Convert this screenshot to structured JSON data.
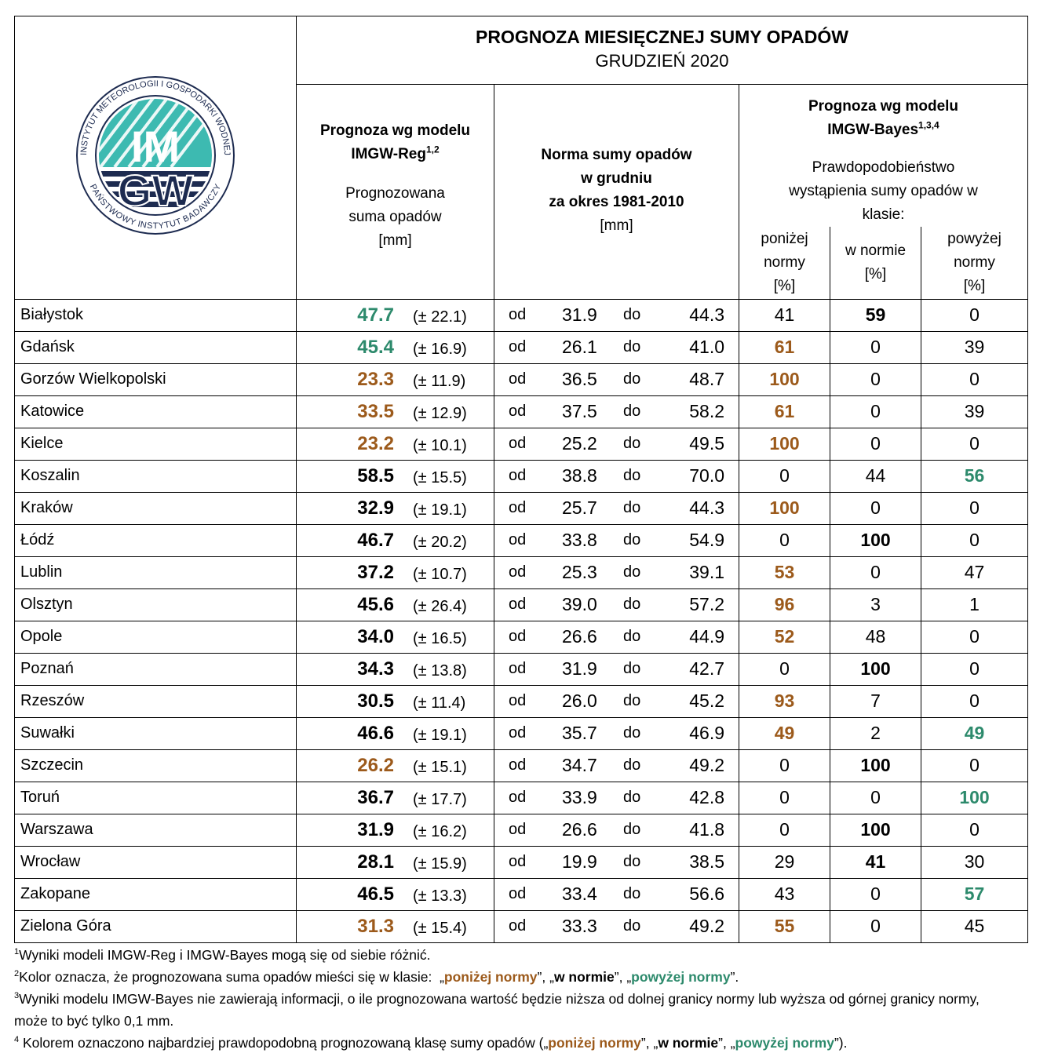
{
  "logo": {
    "ring_top": "INSTYTUT METEOROLOGII I GOSPODARKI WODNEJ",
    "ring_bottom": "PAŃSTWOWY INSTYTUT BADAWCZY",
    "top": "IM",
    "bottom": "GW"
  },
  "header": {
    "title": "PROGNOZA MIESIĘCZNEJ SUMY OPADÓW",
    "subtitle": "GRUDZIEŃ 2020",
    "reg": {
      "title": "Prognoza wg modelu",
      "model": "IMGW-Reg",
      "sup": "1,2",
      "desc": "Prognozowana suma opadów",
      "unit": "[mm]"
    },
    "norm": {
      "title": "Norma sumy opadów",
      "line2": "w grudniu",
      "line3": "za okres 1981-2010",
      "unit": "[mm]"
    },
    "bayes": {
      "title": "Prognoza wg modelu",
      "model": "IMGW-Bayes",
      "sup": "1,3,4",
      "desc": "Prawdopodobieństwo wystąpienia sumy opadów w klasie:",
      "classes": [
        {
          "name": "poniżej normy",
          "unit": "[%]"
        },
        {
          "name": "w normie",
          "unit": "[%]"
        },
        {
          "name": "powyżej normy",
          "unit": "[%]"
        }
      ]
    }
  },
  "labels": {
    "from": "od",
    "to": "do"
  },
  "colors": [
    "#9c5a1b",
    "#000000",
    "#2d8a6c"
  ],
  "rows": [
    {
      "city": "Białystok",
      "forecast": "47.7",
      "error": "(± 22.1)",
      "from": "31.9",
      "to": "44.3",
      "probs": [
        "41",
        "59",
        "0"
      ],
      "forecast_class": 2,
      "top_classes": [
        1
      ]
    },
    {
      "city": "Gdańsk",
      "forecast": "45.4",
      "error": "(± 16.9)",
      "from": "26.1",
      "to": "41.0",
      "probs": [
        "61",
        "0",
        "39"
      ],
      "forecast_class": 2,
      "top_classes": [
        0
      ]
    },
    {
      "city": "Gorzów Wielkopolski",
      "forecast": "23.3",
      "error": "(± 11.9)",
      "from": "36.5",
      "to": "48.7",
      "probs": [
        "100",
        "0",
        "0"
      ],
      "forecast_class": 0,
      "top_classes": [
        0
      ]
    },
    {
      "city": "Katowice",
      "forecast": "33.5",
      "error": "(± 12.9)",
      "from": "37.5",
      "to": "58.2",
      "probs": [
        "61",
        "0",
        "39"
      ],
      "forecast_class": 0,
      "top_classes": [
        0
      ]
    },
    {
      "city": "Kielce",
      "forecast": "23.2",
      "error": "(± 10.1)",
      "from": "25.2",
      "to": "49.5",
      "probs": [
        "100",
        "0",
        "0"
      ],
      "forecast_class": 0,
      "top_classes": [
        0
      ]
    },
    {
      "city": "Koszalin",
      "forecast": "58.5",
      "error": "(± 15.5)",
      "from": "38.8",
      "to": "70.0",
      "probs": [
        "0",
        "44",
        "56"
      ],
      "forecast_class": 1,
      "top_classes": [
        2
      ]
    },
    {
      "city": "Kraków",
      "forecast": "32.9",
      "error": "(± 19.1)",
      "from": "25.7",
      "to": "44.3",
      "probs": [
        "100",
        "0",
        "0"
      ],
      "forecast_class": 1,
      "top_classes": [
        0
      ]
    },
    {
      "city": "Łódź",
      "forecast": "46.7",
      "error": "(± 20.2)",
      "from": "33.8",
      "to": "54.9",
      "probs": [
        "0",
        "100",
        "0"
      ],
      "forecast_class": 1,
      "top_classes": [
        1
      ]
    },
    {
      "city": "Lublin",
      "forecast": "37.2",
      "error": "(± 10.7)",
      "from": "25.3",
      "to": "39.1",
      "probs": [
        "53",
        "0",
        "47"
      ],
      "forecast_class": 1,
      "top_classes": [
        0
      ]
    },
    {
      "city": "Olsztyn",
      "forecast": "45.6",
      "error": "(± 26.4)",
      "from": "39.0",
      "to": "57.2",
      "probs": [
        "96",
        "3",
        "1"
      ],
      "forecast_class": 1,
      "top_classes": [
        0
      ]
    },
    {
      "city": "Opole",
      "forecast": "34.0",
      "error": "(± 16.5)",
      "from": "26.6",
      "to": "44.9",
      "probs": [
        "52",
        "48",
        "0"
      ],
      "forecast_class": 1,
      "top_classes": [
        0
      ]
    },
    {
      "city": "Poznań",
      "forecast": "34.3",
      "error": "(± 13.8)",
      "from": "31.9",
      "to": "42.7",
      "probs": [
        "0",
        "100",
        "0"
      ],
      "forecast_class": 1,
      "top_classes": [
        1
      ]
    },
    {
      "city": "Rzeszów",
      "forecast": "30.5",
      "error": "(± 11.4)",
      "from": "26.0",
      "to": "45.2",
      "probs": [
        "93",
        "7",
        "0"
      ],
      "forecast_class": 1,
      "top_classes": [
        0
      ]
    },
    {
      "city": "Suwałki",
      "forecast": "46.6",
      "error": "(± 19.1)",
      "from": "35.7",
      "to": "46.9",
      "probs": [
        "49",
        "2",
        "49"
      ],
      "forecast_class": 1,
      "top_classes": [
        0,
        2
      ]
    },
    {
      "city": "Szczecin",
      "forecast": "26.2",
      "error": "(± 15.1)",
      "from": "34.7",
      "to": "49.2",
      "probs": [
        "0",
        "100",
        "0"
      ],
      "forecast_class": 0,
      "top_classes": [
        1
      ]
    },
    {
      "city": "Toruń",
      "forecast": "36.7",
      "error": "(± 17.7)",
      "from": "33.9",
      "to": "42.8",
      "probs": [
        "0",
        "0",
        "100"
      ],
      "forecast_class": 1,
      "top_classes": [
        2
      ]
    },
    {
      "city": "Warszawa",
      "forecast": "31.9",
      "error": "(± 16.2)",
      "from": "26.6",
      "to": "41.8",
      "probs": [
        "0",
        "100",
        "0"
      ],
      "forecast_class": 1,
      "top_classes": [
        1
      ]
    },
    {
      "city": "Wrocław",
      "forecast": "28.1",
      "error": "(± 15.9)",
      "from": "19.9",
      "to": "38.5",
      "probs": [
        "29",
        "41",
        "30"
      ],
      "forecast_class": 1,
      "top_classes": [
        1
      ]
    },
    {
      "city": "Zakopane",
      "forecast": "46.5",
      "error": "(± 13.3)",
      "from": "33.4",
      "to": "56.6",
      "probs": [
        "43",
        "0",
        "57"
      ],
      "forecast_class": 1,
      "top_classes": [
        2
      ]
    },
    {
      "city": "Zielona Góra",
      "forecast": "31.3",
      "error": "(± 15.4)",
      "from": "33.3",
      "to": "49.2",
      "probs": [
        "55",
        "0",
        "45"
      ],
      "forecast_class": 0,
      "top_classes": [
        0
      ]
    }
  ],
  "footnotes": [
    {
      "sup": "1",
      "parts": [
        "Wyniki modeli IMGW-Reg i IMGW-Bayes mogą się od siebie różnić."
      ]
    },
    {
      "sup": "2",
      "parts": [
        "Kolor oznacza, że prognozowana suma opadów mieści się w klasie:  „",
        "poniżej normy",
        "”, „",
        "w normie",
        "”, „",
        "powyżej normy",
        "”."
      ]
    },
    {
      "sup": "3",
      "parts": [
        "Wyniki modelu IMGW-Bayes nie zawierają informacji, o ile prognozowana wartość będzie niższa od dolnej granicy normy lub wyższa od górnej granicy normy, może to być tylko 0,1 mm."
      ]
    },
    {
      "sup": "4",
      "parts": [
        " Kolorem oznaczono najbardziej prawdopodobną prognozowaną klasę sumy opadów („",
        "poniżej normy",
        "”, „",
        "w normie",
        "”, „",
        "powyżej normy",
        "”)."
      ]
    }
  ]
}
